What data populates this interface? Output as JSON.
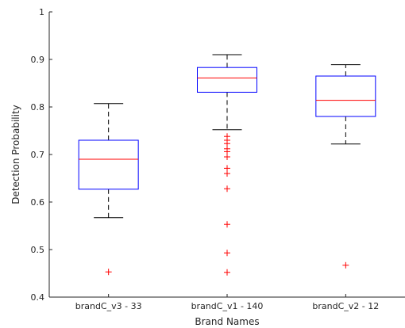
{
  "chart_data": {
    "type": "box",
    "title": "",
    "xlabel": "Brand Names",
    "ylabel": "Detection Probability",
    "ylim": [
      0.4,
      1.0
    ],
    "yticks": [
      0.4,
      0.5,
      0.6,
      0.7,
      0.8,
      0.9,
      1.0
    ],
    "ytick_labels": [
      "0.4",
      "0.5",
      "0.6",
      "0.7",
      "0.8",
      "0.9",
      "1"
    ],
    "grid": false,
    "colors": {
      "box": "#0000ff",
      "median": "#ff0000",
      "whisker": "#000000",
      "outlier": "#ff0000",
      "axis": "#262626"
    },
    "categories": [
      "brandC_v3 - 33",
      "brandC_v1 - 140",
      "brandC_v2 - 12"
    ],
    "boxes": [
      {
        "whisker_low": 0.567,
        "q1": 0.627,
        "median": 0.69,
        "q3": 0.73,
        "whisker_high": 0.807,
        "outliers": [
          0.453
        ]
      },
      {
        "whisker_low": 0.752,
        "q1": 0.831,
        "median": 0.861,
        "q3": 0.883,
        "whisker_high": 0.91,
        "outliers": [
          0.738,
          0.73,
          0.723,
          0.712,
          0.706,
          0.695,
          0.671,
          0.66,
          0.628,
          0.553,
          0.493,
          0.452
        ]
      },
      {
        "whisker_low": 0.722,
        "q1": 0.78,
        "median": 0.814,
        "q3": 0.865,
        "whisker_high": 0.889,
        "outliers": [
          0.467
        ]
      }
    ]
  }
}
